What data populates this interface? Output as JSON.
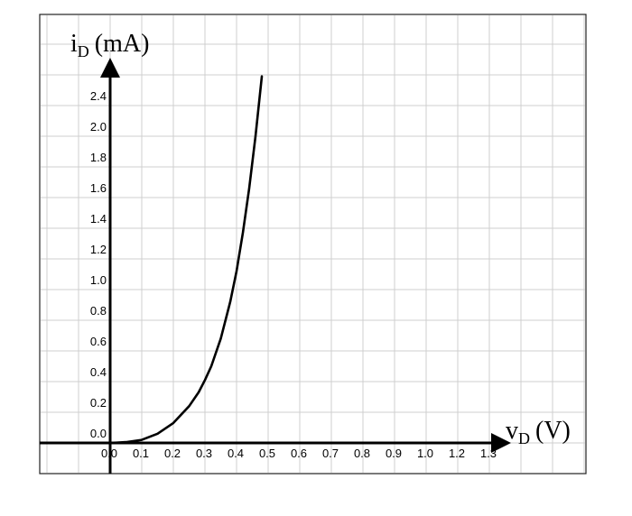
{
  "chart_data": {
    "type": "line",
    "xlabel": {
      "main": "v",
      "sub": "D",
      "unit": "(V)"
    },
    "ylabel": {
      "main": "i",
      "sub": "D",
      "unit": "(mA)"
    },
    "x_ticks": [
      "0.0",
      "0.1",
      "0.2",
      "0.3",
      "0.4",
      "0.5",
      "0.6",
      "0.7",
      "0.8",
      "0.9",
      "1.0",
      "1.2",
      "1.3"
    ],
    "y_ticks": [
      "0.0",
      "0.2",
      "0.4",
      "0.6",
      "0.8",
      "1.0",
      "1.2",
      "1.4",
      "1.6",
      "1.8",
      "2.0",
      "2.4"
    ],
    "xlim": [
      0.0,
      1.3
    ],
    "ylim": [
      0.0,
      2.4
    ],
    "grid": true,
    "series": [
      {
        "x": [
          0.0,
          0.05,
          0.1,
          0.15,
          0.2,
          0.25,
          0.28,
          0.3,
          0.32,
          0.35,
          0.38,
          0.4,
          0.42,
          0.44,
          0.46,
          0.48
        ],
        "y": [
          0.0,
          0.005,
          0.02,
          0.06,
          0.13,
          0.24,
          0.33,
          0.41,
          0.5,
          0.68,
          0.92,
          1.12,
          1.37,
          1.66,
          2.0,
          2.39
        ]
      }
    ],
    "color": "#000000"
  }
}
